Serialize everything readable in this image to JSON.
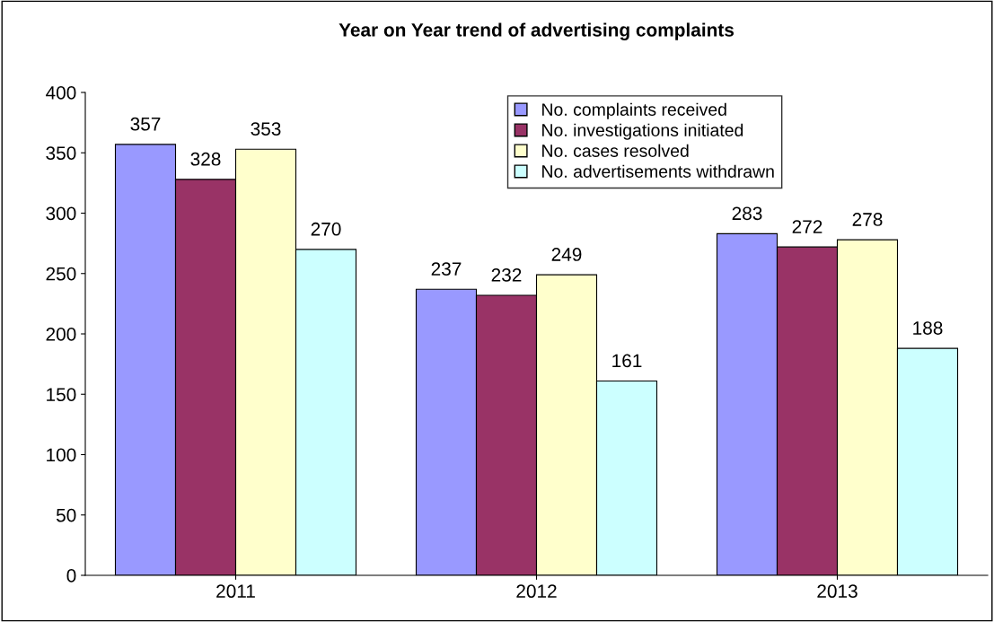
{
  "chart_data": {
    "type": "bar",
    "title": "Year on Year trend of advertising complaints",
    "categories": [
      "2011",
      "2012",
      "2013"
    ],
    "series": [
      {
        "name": "No. complaints received",
        "color": "#9999ff",
        "values": [
          357,
          237,
          283
        ]
      },
      {
        "name": "No. investigations initiated",
        "color": "#993366",
        "values": [
          328,
          232,
          272
        ]
      },
      {
        "name": "No. cases resolved",
        "color": "#ffffcc",
        "values": [
          353,
          249,
          278
        ]
      },
      {
        "name": "No. advertisements withdrawn",
        "color": "#ccffff",
        "values": [
          270,
          161,
          188
        ]
      }
    ],
    "ylim": [
      0,
      400
    ],
    "yticks": [
      0,
      50,
      100,
      150,
      200,
      250,
      300,
      350,
      400
    ],
    "data_labels": true,
    "grid": false,
    "legend": "top"
  }
}
